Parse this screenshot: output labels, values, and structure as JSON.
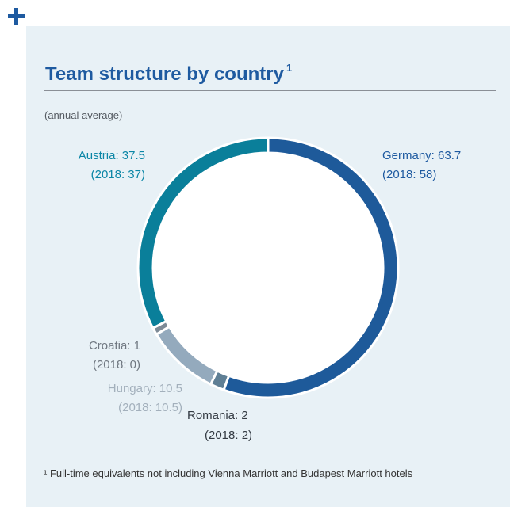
{
  "title": "Team structure by country",
  "title_superscript": "1",
  "subtitle": "(annual average)",
  "footnote": "¹ Full-time equivalents not including Vienna Marriott and Budapest Marriott hotels",
  "chart_data": {
    "type": "pie",
    "donut": true,
    "slices": [
      {
        "name": "Germany",
        "value": 63.7,
        "prev": 58,
        "label": "Germany: 63.7",
        "prev_label": "(2018: 58)",
        "color": "#1e5a9a"
      },
      {
        "name": "Romania",
        "value": 2,
        "prev": 2,
        "label": "Romania: 2",
        "prev_label": "(2018: 2)",
        "color": "#5f7f95"
      },
      {
        "name": "Hungary",
        "value": 10.5,
        "prev": 10.5,
        "label": "Hungary: 10.5",
        "prev_label": "(2018: 10.5)",
        "color": "#94aabd"
      },
      {
        "name": "Croatia",
        "value": 1,
        "prev": 0,
        "label": "Croatia: 1",
        "prev_label": "(2018: 0)",
        "color": "#7d8a96"
      },
      {
        "name": "Austria",
        "value": 37.5,
        "prev": 37,
        "label": "Austria: 37.5",
        "prev_label": "(2018: 37)",
        "color": "#0a7f9a"
      }
    ],
    "label_colors": {
      "Germany": "#1e5aa0",
      "Romania": "#333a42",
      "Hungary": "#a3b0bc",
      "Croatia": "#6f7780",
      "Austria": "#0a86a6"
    }
  }
}
